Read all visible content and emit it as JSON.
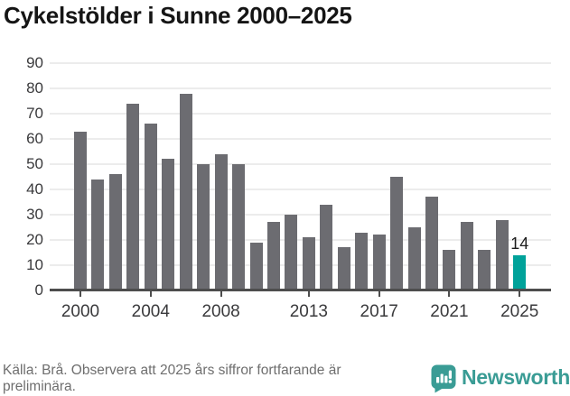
{
  "chart_data": {
    "type": "bar",
    "title": "Cykelstölder i Sunne 2000–2025",
    "categories": [
      2000,
      2001,
      2002,
      2003,
      2004,
      2005,
      2006,
      2007,
      2008,
      2009,
      2010,
      2011,
      2012,
      2013,
      2014,
      2015,
      2016,
      2017,
      2018,
      2019,
      2020,
      2021,
      2022,
      2023,
      2024,
      2025
    ],
    "values": [
      63,
      44,
      46,
      74,
      66,
      52,
      78,
      50,
      54,
      50,
      19,
      27,
      30,
      21,
      34,
      17,
      23,
      22,
      45,
      25,
      37,
      16,
      27,
      16,
      28,
      14
    ],
    "highlight": {
      "category": 2025,
      "value": 14,
      "label": "14"
    },
    "xticks": [
      2000,
      2004,
      2008,
      2013,
      2017,
      2021,
      2025
    ],
    "yticks": [
      0,
      10,
      20,
      30,
      40,
      50,
      60,
      70,
      80,
      90
    ],
    "ylim": [
      0,
      90
    ],
    "xlabel": "",
    "ylabel": "",
    "grid": true,
    "legend": "none",
    "colors": {
      "bar": "#6c6c71",
      "highlight": "#00a29a"
    }
  },
  "footer": {
    "source": "Källa: Brå. Observera att 2025 års siffror fortfarande är preliminära.",
    "brand": "Newsworthy",
    "brand_color": "#3a9c95"
  },
  "icons": {
    "logo": "newsworthy-bubble-chart-icon"
  }
}
